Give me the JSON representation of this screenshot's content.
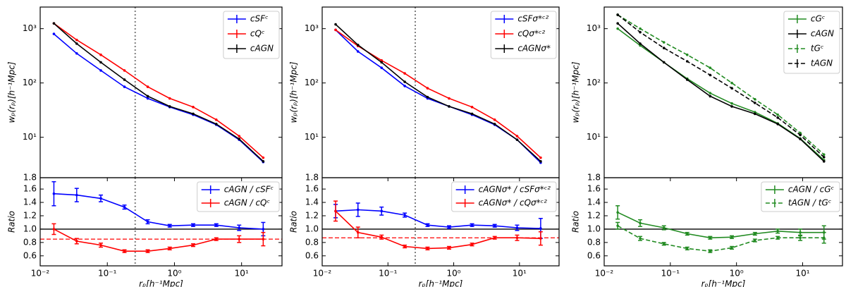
{
  "chart_data": [
    {
      "type": "line",
      "ylabel": "wₚ(rₚ)[h⁻¹Mpc]",
      "xlog": true,
      "ylog": true,
      "xlim": [
        0.01,
        40
      ],
      "ylim": [
        1.8,
        2500
      ],
      "yticks": [
        1.8,
        {
          "value": 10,
          "label": "10¹"
        },
        {
          "value": 100,
          "label": "10²"
        },
        {
          "value": 1000,
          "label": "10³"
        }
      ],
      "vline": 0.26,
      "legend": "upper right",
      "x": [
        0.016,
        0.035,
        0.08,
        0.18,
        0.4,
        0.85,
        1.9,
        4.2,
        9.2,
        21
      ],
      "series": [
        {
          "name": "cSFᶜ",
          "color": "#0000ff",
          "linestyle": "solid",
          "values": [
            800,
            350,
            170,
            85,
            52,
            36,
            26,
            17,
            9,
            3.5
          ]
        },
        {
          "name": "cQᶜ",
          "color": "#ff0000",
          "linestyle": "solid",
          "values": [
            1250,
            620,
            330,
            170,
            85,
            52,
            36,
            21,
            10.5,
            4.2
          ]
        },
        {
          "name": "cAGN",
          "color": "#000000",
          "linestyle": "solid",
          "values": [
            1250,
            530,
            240,
            115,
            57,
            37,
            27,
            17.5,
            9.3,
            3.6
          ]
        }
      ]
    },
    {
      "type": "line",
      "ylabel": "Ratio",
      "xlabel": "rₚ[h⁻¹Mpc]",
      "xlog": true,
      "ylog": false,
      "xlim": [
        0.01,
        40
      ],
      "ylim": [
        0.45,
        1.77
      ],
      "xticks": [
        {
          "value": 0.01,
          "label": "10⁻²"
        },
        {
          "value": 0.1,
          "label": "10⁻¹"
        },
        {
          "value": 1,
          "label": "10⁰"
        },
        {
          "value": 10,
          "label": "10¹"
        }
      ],
      "yticks": [
        0.6,
        0.8,
        {
          "value": 1,
          "label": "1.0"
        },
        1.2,
        1.4,
        1.6
      ],
      "vline": 0.26,
      "legend": "upper right",
      "hlines": [
        {
          "value": 1,
          "color": "#000000",
          "linestyle": "solid"
        },
        {
          "value": 0.85,
          "color": "#ff0000",
          "linestyle": "dashed"
        }
      ],
      "x": [
        0.016,
        0.035,
        0.08,
        0.18,
        0.4,
        0.85,
        1.9,
        4.2,
        9.2,
        21
      ],
      "series": [
        {
          "name": "cAGN / cSFᶜ",
          "color": "#0000ff",
          "linestyle": "solid",
          "values": [
            1.53,
            1.51,
            1.46,
            1.33,
            1.11,
            1.05,
            1.06,
            1.06,
            1.02,
            1.0
          ],
          "errors": [
            0.18,
            0.1,
            0.05,
            0.03,
            0.03,
            0.02,
            0.02,
            0.02,
            0.04,
            0.1
          ]
        },
        {
          "name": "cAGN / cQᶜ",
          "color": "#ff0000",
          "linestyle": "solid",
          "values": [
            1.0,
            0.82,
            0.76,
            0.67,
            0.67,
            0.71,
            0.76,
            0.85,
            0.85,
            0.85
          ],
          "errors": [
            0.08,
            0.04,
            0.03,
            0.02,
            0.02,
            0.02,
            0.02,
            0.02,
            0.05,
            0.1
          ]
        }
      ]
    },
    {
      "type": "line",
      "ylabel": "wₚ(rₚ)[h⁻¹Mpc]",
      "xlog": true,
      "ylog": true,
      "xlim": [
        0.01,
        40
      ],
      "ylim": [
        1.8,
        2500
      ],
      "yticks": [
        1.8,
        {
          "value": 10,
          "label": "10¹"
        },
        {
          "value": 100,
          "label": "10²"
        },
        {
          "value": 1000,
          "label": "10³"
        }
      ],
      "vline": 0.26,
      "legend": "upper right",
      "x": [
        0.016,
        0.035,
        0.08,
        0.18,
        0.4,
        0.85,
        1.9,
        4.2,
        9.2,
        21
      ],
      "series": [
        {
          "name": "cSFσ*ᶜ²",
          "color": "#0000ff",
          "linestyle": "solid",
          "values": [
            950,
            380,
            190,
            88,
            52,
            37,
            26,
            17,
            9,
            3.4
          ]
        },
        {
          "name": "cQσ*ᶜ²",
          "color": "#ff0000",
          "linestyle": "solid",
          "values": [
            950,
            480,
            260,
            150,
            80,
            52,
            36,
            21,
            10.5,
            4.2
          ]
        },
        {
          "name": "cAGNσ*",
          "color": "#000000",
          "linestyle": "solid",
          "values": [
            1200,
            500,
            240,
            105,
            55,
            37,
            27,
            17.5,
            9,
            3.6
          ]
        }
      ]
    },
    {
      "type": "line",
      "ylabel": "Ratio",
      "xlabel": "rₚ[h⁻¹Mpc]",
      "xlog": true,
      "ylog": false,
      "xlim": [
        0.01,
        40
      ],
      "ylim": [
        0.45,
        1.77
      ],
      "xticks": [
        {
          "value": 0.01,
          "label": "10⁻²"
        },
        {
          "value": 0.1,
          "label": "10⁻¹"
        },
        {
          "value": 1,
          "label": "10⁰"
        },
        {
          "value": 10,
          "label": "10¹"
        }
      ],
      "yticks": [
        0.6,
        0.8,
        {
          "value": 1,
          "label": "1.0"
        },
        1.2,
        1.4,
        1.6
      ],
      "vline": 0.26,
      "legend": "upper right",
      "hlines": [
        {
          "value": 1,
          "color": "#000000",
          "linestyle": "solid"
        },
        {
          "value": 0.87,
          "color": "#ff0000",
          "linestyle": "dashed"
        }
      ],
      "x": [
        0.016,
        0.035,
        0.08,
        0.18,
        0.4,
        0.85,
        1.9,
        4.2,
        9.2,
        21
      ],
      "series": [
        {
          "name": "cAGNσ* / cSFσ*ᶜ²",
          "color": "#0000ff",
          "linestyle": "solid",
          "values": [
            1.27,
            1.29,
            1.27,
            1.21,
            1.06,
            1.03,
            1.06,
            1.05,
            1.02,
            1.01
          ],
          "errors": [
            0.1,
            0.1,
            0.06,
            0.03,
            0.02,
            0.02,
            0.02,
            0.02,
            0.04,
            0.15
          ]
        },
        {
          "name": "cAGNσ* / cQσ*ᶜ²",
          "color": "#ff0000",
          "linestyle": "solid",
          "values": [
            1.27,
            0.95,
            0.88,
            0.74,
            0.71,
            0.72,
            0.77,
            0.87,
            0.87,
            0.86
          ],
          "errors": [
            0.15,
            0.08,
            0.03,
            0.02,
            0.02,
            0.02,
            0.02,
            0.02,
            0.04,
            0.1
          ]
        }
      ]
    },
    {
      "type": "line",
      "ylabel": "wₚ(rₚ)[h⁻¹Mpc]",
      "xlog": true,
      "ylog": true,
      "xlim": [
        0.01,
        40
      ],
      "ylim": [
        1.8,
        2500
      ],
      "yticks": [
        1.8,
        {
          "value": 10,
          "label": "10¹"
        },
        {
          "value": 100,
          "label": "10²"
        },
        {
          "value": 1000,
          "label": "10³"
        }
      ],
      "legend": "upper right",
      "x": [
        0.016,
        0.035,
        0.08,
        0.18,
        0.4,
        0.85,
        1.9,
        4.2,
        9.2,
        21
      ],
      "series": [
        {
          "name": "cGᶜ",
          "color": "#228b22",
          "linestyle": "solid",
          "values": [
            1000,
            490,
            240,
            120,
            65,
            42,
            29,
            18,
            9.5,
            3.8
          ]
        },
        {
          "name": "cAGN",
          "color": "#000000",
          "linestyle": "solid",
          "values": [
            1250,
            530,
            240,
            115,
            57,
            37,
            27,
            17.5,
            9.3,
            3.6
          ]
        },
        {
          "name": "tGᶜ",
          "color": "#228b22",
          "linestyle": "dashed",
          "values": [
            1800,
            1000,
            560,
            330,
            190,
            100,
            50,
            26,
            12,
            4.8
          ]
        },
        {
          "name": "tAGN",
          "color": "#000000",
          "linestyle": "dashed",
          "values": [
            1800,
            860,
            440,
            250,
            140,
            80,
            43,
            23,
            11,
            4.3
          ]
        }
      ]
    },
    {
      "type": "line",
      "ylabel": "Ratio",
      "xlabel": "rₚ[h⁻¹Mpc]",
      "xlog": true,
      "ylog": false,
      "xlim": [
        0.01,
        40
      ],
      "ylim": [
        0.45,
        1.77
      ],
      "xticks": [
        {
          "value": 0.01,
          "label": "10⁻²"
        },
        {
          "value": 0.1,
          "label": "10⁻¹"
        },
        {
          "value": 1,
          "label": "10⁰"
        },
        {
          "value": 10,
          "label": "10¹"
        }
      ],
      "yticks": [
        0.6,
        0.8,
        {
          "value": 1,
          "label": "1.0"
        },
        1.2,
        1.4,
        1.6
      ],
      "legend": "upper right",
      "hlines": [
        {
          "value": 1,
          "color": "#000000",
          "linestyle": "solid"
        }
      ],
      "x": [
        0.016,
        0.035,
        0.08,
        0.18,
        0.4,
        0.85,
        1.9,
        4.2,
        9.2,
        21
      ],
      "series": [
        {
          "name": "cAGN / cGᶜ",
          "color": "#228b22",
          "linestyle": "solid",
          "values": [
            1.25,
            1.09,
            1.02,
            0.93,
            0.87,
            0.88,
            0.93,
            0.97,
            0.95,
            0.95
          ],
          "errors": [
            0.1,
            0.05,
            0.03,
            0.02,
            0.02,
            0.02,
            0.02,
            0.03,
            0.05,
            0.1
          ]
        },
        {
          "name": "tAGN / tGᶜ",
          "color": "#228b22",
          "linestyle": "dashed",
          "values": [
            1.05,
            0.86,
            0.78,
            0.71,
            0.67,
            0.72,
            0.83,
            0.87,
            0.87,
            0.87
          ],
          "errors": [
            0.05,
            0.03,
            0.02,
            0.02,
            0.02,
            0.02,
            0.02,
            0.02,
            0.04,
            0.08
          ]
        }
      ]
    }
  ]
}
